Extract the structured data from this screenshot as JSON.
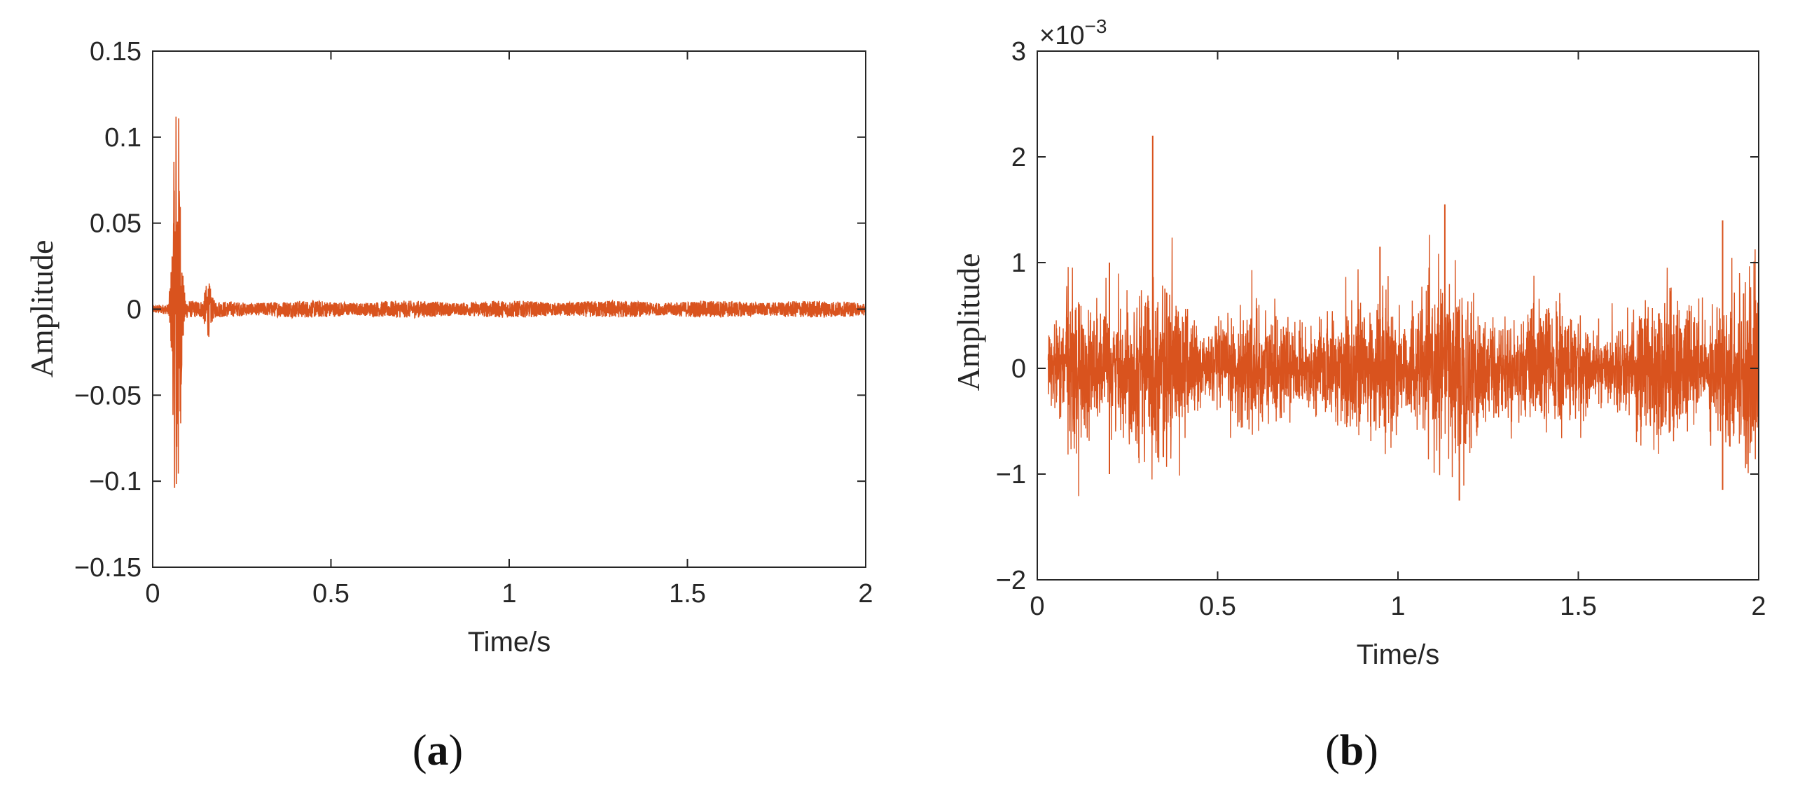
{
  "chart_data": [
    {
      "type": "line",
      "panel_label": "a",
      "xlabel": "Time/s",
      "ylabel": "Amplitude",
      "xlim": [
        0,
        2
      ],
      "ylim": [
        -0.15,
        0.15
      ],
      "xticks": [
        "0",
        "0.5",
        "1",
        "1.5",
        "2"
      ],
      "yticks": [
        "0.15",
        "0.1",
        "0.05",
        "0",
        "−0.05",
        "−0.1",
        "−0.15"
      ],
      "grid": false,
      "color": "#d9531e",
      "series": [
        {
          "description_points": [
            {
              "x": 0.0,
              "y": 0.0
            },
            {
              "x": 0.05,
              "y": 0.005
            },
            {
              "x": 0.065,
              "y": 0.12
            },
            {
              "x": 0.068,
              "y": 0.133
            },
            {
              "x": 0.07,
              "y": -0.14
            },
            {
              "x": 0.09,
              "y": 0.04
            },
            {
              "x": 0.11,
              "y": -0.03
            },
            {
              "x": 0.15,
              "y": 0.017
            },
            {
              "x": 0.16,
              "y": -0.012
            },
            {
              "x": 0.3,
              "y": 0.004
            },
            {
              "x": 1.0,
              "y": 0.005
            },
            {
              "x": 2.0,
              "y": 0.004
            }
          ]
        }
      ]
    },
    {
      "type": "line",
      "panel_label": "b",
      "xlabel": "Time/s",
      "ylabel": "Amplitude",
      "exponent_label": "×10",
      "exponent_power": "−3",
      "xlim": [
        0,
        2
      ],
      "ylim": [
        -2,
        3
      ],
      "xticks": [
        "0",
        "0.5",
        "1",
        "1.5",
        "2"
      ],
      "yticks": [
        "3",
        "2",
        "1",
        "0",
        "−1",
        "−2"
      ],
      "grid": false,
      "color": "#d9531e",
      "series": [
        {
          "description_points": [
            {
              "x": 0.03,
              "y": 0.0
            },
            {
              "x": 0.2,
              "y": 1.0
            },
            {
              "x": 0.2,
              "y": -1.0
            },
            {
              "x": 0.32,
              "y": 2.2
            },
            {
              "x": 0.95,
              "y": 1.15
            },
            {
              "x": 1.13,
              "y": 1.55
            },
            {
              "x": 1.17,
              "y": -1.25
            },
            {
              "x": 1.9,
              "y": 1.4
            },
            {
              "x": 1.9,
              "y": -1.15
            },
            {
              "x": 2.0,
              "y": 0.5
            }
          ]
        }
      ]
    }
  ]
}
